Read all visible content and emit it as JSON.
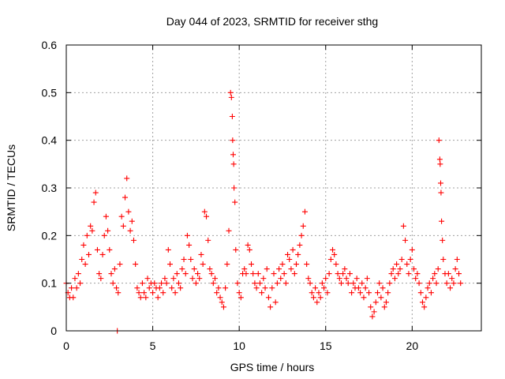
{
  "chart_data": {
    "type": "scatter",
    "title": "Day 044 of 2023, SRMTID for receiver sthg",
    "xlabel": "GPS time / hours",
    "ylabel": "SRMTID / TECUs",
    "xlim": [
      0,
      24
    ],
    "ylim": [
      0,
      0.6
    ],
    "xticks": [
      0,
      5,
      10,
      15,
      20
    ],
    "yticks": [
      0,
      0.1,
      0.2,
      0.3,
      0.4,
      0.5,
      0.6
    ],
    "xtick_labels": [
      "0",
      "5",
      "10",
      "15",
      "20"
    ],
    "ytick_labels": [
      "0",
      "0.1",
      "0.2",
      "0.3",
      "0.4",
      "0.5",
      "0.6"
    ],
    "grid": true,
    "marker": "+",
    "marker_color": "#ff0000",
    "series": [
      {
        "name": "SRMTID",
        "points": [
          [
            0.0,
            0.1
          ],
          [
            0.1,
            0.08
          ],
          [
            0.2,
            0.07
          ],
          [
            0.3,
            0.09
          ],
          [
            0.4,
            0.07
          ],
          [
            0.5,
            0.11
          ],
          [
            0.6,
            0.09
          ],
          [
            0.7,
            0.12
          ],
          [
            0.8,
            0.1
          ],
          [
            0.9,
            0.15
          ],
          [
            1.0,
            0.18
          ],
          [
            1.1,
            0.14
          ],
          [
            1.2,
            0.2
          ],
          [
            1.3,
            0.16
          ],
          [
            1.4,
            0.22
          ],
          [
            1.5,
            0.21
          ],
          [
            1.6,
            0.27
          ],
          [
            1.7,
            0.29
          ],
          [
            1.8,
            0.17
          ],
          [
            1.9,
            0.12
          ],
          [
            2.0,
            0.11
          ],
          [
            2.1,
            0.16
          ],
          [
            2.2,
            0.2
          ],
          [
            2.3,
            0.24
          ],
          [
            2.4,
            0.21
          ],
          [
            2.5,
            0.17
          ],
          [
            2.6,
            0.12
          ],
          [
            2.7,
            0.1
          ],
          [
            2.8,
            0.13
          ],
          [
            2.9,
            0.09
          ],
          [
            3.0,
            0.08
          ],
          [
            3.1,
            0.14
          ],
          [
            3.2,
            0.24
          ],
          [
            3.3,
            0.22
          ],
          [
            3.4,
            0.28
          ],
          [
            3.5,
            0.32
          ],
          [
            3.6,
            0.25
          ],
          [
            3.7,
            0.21
          ],
          [
            3.8,
            0.23
          ],
          [
            3.9,
            0.19
          ],
          [
            4.0,
            0.14
          ],
          [
            4.1,
            0.09
          ],
          [
            4.2,
            0.08
          ],
          [
            4.3,
            0.07
          ],
          [
            4.4,
            0.1
          ],
          [
            4.5,
            0.08
          ],
          [
            4.6,
            0.07
          ],
          [
            4.7,
            0.11
          ],
          [
            4.8,
            0.09
          ],
          [
            4.9,
            0.1
          ],
          [
            5.0,
            0.08
          ],
          [
            5.1,
            0.1
          ],
          [
            5.2,
            0.09
          ],
          [
            5.3,
            0.07
          ],
          [
            5.4,
            0.09
          ],
          [
            5.5,
            0.1
          ],
          [
            5.6,
            0.08
          ],
          [
            5.7,
            0.11
          ],
          [
            5.8,
            0.1
          ],
          [
            5.9,
            0.17
          ],
          [
            6.0,
            0.14
          ],
          [
            6.1,
            0.09
          ],
          [
            6.2,
            0.11
          ],
          [
            6.3,
            0.08
          ],
          [
            6.4,
            0.12
          ],
          [
            6.5,
            0.1
          ],
          [
            6.6,
            0.09
          ],
          [
            6.7,
            0.13
          ],
          [
            6.8,
            0.15
          ],
          [
            6.9,
            0.12
          ],
          [
            7.0,
            0.2
          ],
          [
            7.1,
            0.18
          ],
          [
            7.2,
            0.15
          ],
          [
            7.3,
            0.11
          ],
          [
            7.4,
            0.13
          ],
          [
            7.5,
            0.1
          ],
          [
            7.6,
            0.12
          ],
          [
            7.7,
            0.11
          ],
          [
            7.8,
            0.16
          ],
          [
            7.9,
            0.14
          ],
          [
            8.0,
            0.25
          ],
          [
            8.1,
            0.24
          ],
          [
            8.2,
            0.19
          ],
          [
            8.3,
            0.13
          ],
          [
            8.4,
            0.12
          ],
          [
            8.5,
            0.1
          ],
          [
            8.6,
            0.11
          ],
          [
            8.7,
            0.08
          ],
          [
            8.8,
            0.09
          ],
          [
            8.9,
            0.07
          ],
          [
            9.0,
            0.06
          ],
          [
            9.1,
            0.05
          ],
          [
            9.2,
            0.09
          ],
          [
            9.3,
            0.14
          ],
          [
            9.4,
            0.21
          ],
          [
            9.5,
            0.5
          ],
          [
            9.55,
            0.49
          ],
          [
            9.6,
            0.45
          ],
          [
            9.62,
            0.4
          ],
          [
            9.65,
            0.37
          ],
          [
            9.68,
            0.35
          ],
          [
            9.7,
            0.3
          ],
          [
            9.75,
            0.27
          ],
          [
            9.8,
            0.17
          ],
          [
            9.9,
            0.1
          ],
          [
            10.0,
            0.08
          ],
          [
            10.1,
            0.07
          ],
          [
            10.2,
            0.12
          ],
          [
            10.3,
            0.13
          ],
          [
            10.4,
            0.12
          ],
          [
            10.5,
            0.18
          ],
          [
            10.6,
            0.17
          ],
          [
            10.7,
            0.14
          ],
          [
            10.8,
            0.12
          ],
          [
            10.9,
            0.1
          ],
          [
            11.0,
            0.09
          ],
          [
            11.1,
            0.12
          ],
          [
            11.2,
            0.1
          ],
          [
            11.3,
            0.08
          ],
          [
            11.4,
            0.11
          ],
          [
            11.5,
            0.09
          ],
          [
            11.6,
            0.13
          ],
          [
            11.7,
            0.07
          ],
          [
            11.8,
            0.05
          ],
          [
            11.9,
            0.09
          ],
          [
            12.0,
            0.12
          ],
          [
            12.1,
            0.06
          ],
          [
            12.2,
            0.1
          ],
          [
            12.3,
            0.13
          ],
          [
            12.4,
            0.11
          ],
          [
            12.5,
            0.14
          ],
          [
            12.6,
            0.12
          ],
          [
            12.7,
            0.1
          ],
          [
            12.8,
            0.16
          ],
          [
            12.9,
            0.15
          ],
          [
            13.0,
            0.13
          ],
          [
            13.1,
            0.17
          ],
          [
            13.2,
            0.12
          ],
          [
            13.3,
            0.14
          ],
          [
            13.4,
            0.16
          ],
          [
            13.5,
            0.18
          ],
          [
            13.6,
            0.2
          ],
          [
            13.7,
            0.22
          ],
          [
            13.8,
            0.25
          ],
          [
            13.9,
            0.14
          ],
          [
            14.0,
            0.11
          ],
          [
            14.1,
            0.1
          ],
          [
            14.2,
            0.08
          ],
          [
            14.3,
            0.07
          ],
          [
            14.4,
            0.09
          ],
          [
            14.5,
            0.06
          ],
          [
            14.6,
            0.08
          ],
          [
            14.7,
            0.07
          ],
          [
            14.8,
            0.1
          ],
          [
            14.9,
            0.09
          ],
          [
            15.0,
            0.11
          ],
          [
            15.1,
            0.08
          ],
          [
            15.2,
            0.12
          ],
          [
            15.3,
            0.15
          ],
          [
            15.4,
            0.17
          ],
          [
            15.5,
            0.16
          ],
          [
            15.6,
            0.14
          ],
          [
            15.7,
            0.12
          ],
          [
            15.8,
            0.11
          ],
          [
            15.9,
            0.1
          ],
          [
            16.0,
            0.12
          ],
          [
            16.1,
            0.13
          ],
          [
            16.2,
            0.11
          ],
          [
            16.3,
            0.1
          ],
          [
            16.4,
            0.12
          ],
          [
            16.5,
            0.08
          ],
          [
            16.6,
            0.1
          ],
          [
            16.7,
            0.09
          ],
          [
            16.8,
            0.11
          ],
          [
            16.9,
            0.09
          ],
          [
            17.0,
            0.08
          ],
          [
            17.1,
            0.1
          ],
          [
            17.2,
            0.07
          ],
          [
            17.3,
            0.09
          ],
          [
            17.4,
            0.11
          ],
          [
            17.5,
            0.08
          ],
          [
            17.6,
            0.05
          ],
          [
            17.7,
            0.03
          ],
          [
            17.8,
            0.04
          ],
          [
            17.9,
            0.06
          ],
          [
            18.0,
            0.08
          ],
          [
            18.1,
            0.1
          ],
          [
            18.2,
            0.07
          ],
          [
            18.3,
            0.09
          ],
          [
            18.4,
            0.05
          ],
          [
            18.5,
            0.06
          ],
          [
            18.6,
            0.08
          ],
          [
            18.7,
            0.1
          ],
          [
            18.8,
            0.12
          ],
          [
            18.9,
            0.13
          ],
          [
            19.0,
            0.11
          ],
          [
            19.1,
            0.14
          ],
          [
            19.2,
            0.12
          ],
          [
            19.3,
            0.13
          ],
          [
            19.4,
            0.15
          ],
          [
            19.5,
            0.22
          ],
          [
            19.6,
            0.19
          ],
          [
            19.7,
            0.14
          ],
          [
            19.8,
            0.12
          ],
          [
            19.9,
            0.15
          ],
          [
            20.0,
            0.17
          ],
          [
            20.1,
            0.13
          ],
          [
            20.2,
            0.11
          ],
          [
            20.3,
            0.12
          ],
          [
            20.4,
            0.1
          ],
          [
            20.5,
            0.08
          ],
          [
            20.6,
            0.06
          ],
          [
            20.7,
            0.05
          ],
          [
            20.8,
            0.07
          ],
          [
            20.9,
            0.09
          ],
          [
            21.0,
            0.1
          ],
          [
            21.1,
            0.08
          ],
          [
            21.2,
            0.11
          ],
          [
            21.3,
            0.12
          ],
          [
            21.4,
            0.1
          ],
          [
            21.5,
            0.13
          ],
          [
            21.55,
            0.4
          ],
          [
            21.6,
            0.36
          ],
          [
            21.62,
            0.35
          ],
          [
            21.65,
            0.31
          ],
          [
            21.67,
            0.29
          ],
          [
            21.7,
            0.23
          ],
          [
            21.75,
            0.19
          ],
          [
            21.8,
            0.15
          ],
          [
            21.9,
            0.12
          ],
          [
            22.0,
            0.1
          ],
          [
            22.1,
            0.12
          ],
          [
            22.2,
            0.09
          ],
          [
            22.3,
            0.11
          ],
          [
            22.4,
            0.1
          ],
          [
            22.5,
            0.13
          ],
          [
            22.6,
            0.15
          ],
          [
            22.7,
            0.12
          ],
          [
            22.8,
            0.1
          ],
          [
            2.95,
            0.0
          ]
        ]
      }
    ]
  }
}
